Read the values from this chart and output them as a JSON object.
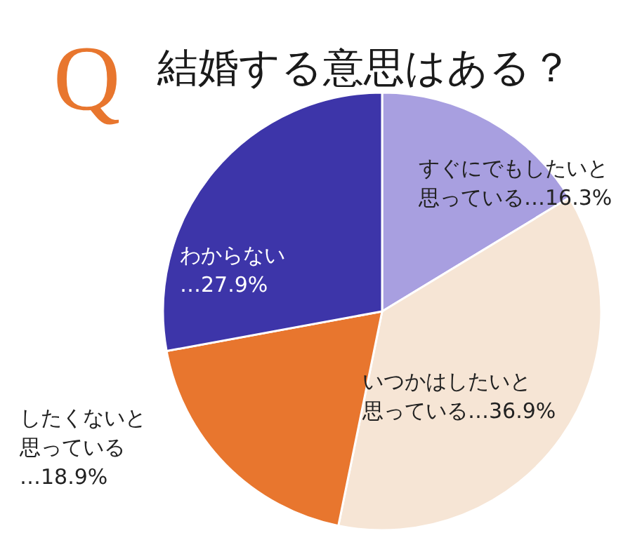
{
  "chart_data": {
    "type": "pie",
    "title": "結婚する意思はある？",
    "annotations": [
      "Q"
    ],
    "categories": [
      "すぐにでもしたいと思っている",
      "いつかはしたいと思っている",
      "したくないと思っている",
      "わからない"
    ],
    "values": [
      16.3,
      36.9,
      18.9,
      27.9
    ],
    "colors": [
      "#a89fe0",
      "#f6e5d5",
      "#e8762e",
      "#3d35a9"
    ],
    "value_labels": [
      "…16.3%",
      "…36.9%",
      "…18.9%",
      "…27.9%"
    ]
  }
}
